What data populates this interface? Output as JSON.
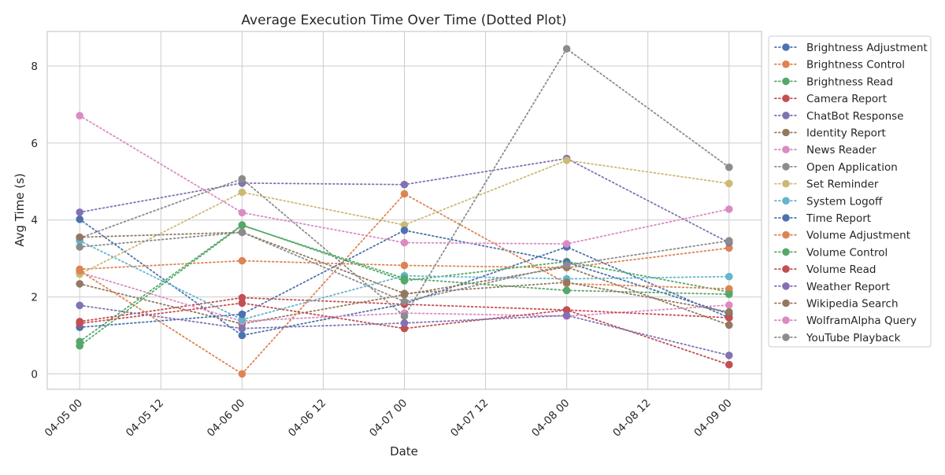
{
  "chart_data": {
    "type": "line",
    "title": "Average Execution Time Over Time (Dotted Plot)",
    "xlabel": "Date",
    "ylabel": "Avg Time (s)",
    "x": [
      "2024-04-05",
      "2024-04-06",
      "2024-04-07",
      "2024-04-08",
      "2024-04-09"
    ],
    "x_ticks": [
      "04-05 00",
      "04-05 12",
      "04-06 00",
      "04-06 12",
      "04-07 00",
      "04-07 12",
      "04-08 00",
      "04-08 12",
      "04-09 00"
    ],
    "ylim": [
      -0.4,
      8.9
    ],
    "y_ticks": [
      0,
      2,
      4,
      6,
      8
    ],
    "grid": true,
    "line_style": "dotted",
    "marker": "circle",
    "legend_position": "outside-right",
    "series": [
      {
        "name": "Brightness Adjustment",
        "color": "#4c72b0",
        "values": [
          4.02,
          1.0,
          1.82,
          3.3,
          1.46
        ]
      },
      {
        "name": "Brightness Control",
        "color": "#dd8452",
        "values": [
          2.72,
          2.94,
          2.82,
          2.76,
          3.27
        ]
      },
      {
        "name": "Brightness Read",
        "color": "#55a868",
        "values": [
          0.84,
          3.87,
          2.42,
          2.92,
          2.13
        ]
      },
      {
        "name": "Camera Report",
        "color": "#c44e52",
        "values": [
          1.36,
          1.98,
          1.81,
          1.66,
          0.24
        ]
      },
      {
        "name": "ChatBot Response",
        "color": "#8172b3",
        "values": [
          4.2,
          4.96,
          4.92,
          5.6,
          3.41
        ]
      },
      {
        "name": "Identity Report",
        "color": "#937860",
        "values": [
          2.34,
          1.3,
          2.06,
          2.78,
          1.27
        ]
      },
      {
        "name": "News Reader",
        "color": "#da8bc3",
        "values": [
          2.64,
          1.37,
          1.58,
          1.5,
          1.79
        ]
      },
      {
        "name": "Open Application",
        "color": "#8c8c8c",
        "values": [
          3.53,
          5.07,
          1.5,
          8.45,
          5.37
        ]
      },
      {
        "name": "Set Reminder",
        "color": "#ccb974",
        "values": [
          2.59,
          4.72,
          3.87,
          5.55,
          4.95
        ]
      },
      {
        "name": "System Logoff",
        "color": "#64b5cd",
        "values": [
          3.46,
          1.41,
          2.55,
          2.47,
          2.53
        ]
      },
      {
        "name": "Time Report",
        "color": "#4c72b0",
        "values": [
          1.21,
          1.55,
          3.73,
          2.9,
          1.56
        ]
      },
      {
        "name": "Volume Adjustment",
        "color": "#dd8452",
        "values": [
          2.68,
          0.0,
          4.68,
          2.35,
          2.21
        ]
      },
      {
        "name": "Volume Control",
        "color": "#55a868",
        "values": [
          0.73,
          3.86,
          2.48,
          2.17,
          2.07
        ]
      },
      {
        "name": "Volume Read",
        "color": "#c44e52",
        "values": [
          1.31,
          1.84,
          1.18,
          1.66,
          1.46
        ]
      },
      {
        "name": "Weather Report",
        "color": "#8172b3",
        "values": [
          1.78,
          1.18,
          1.32,
          1.52,
          0.48
        ]
      },
      {
        "name": "Wikipedia Search",
        "color": "#937860",
        "values": [
          3.55,
          3.68,
          2.09,
          2.38,
          1.61
        ]
      },
      {
        "name": "WolframAlpha Query",
        "color": "#da8bc3",
        "values": [
          6.71,
          4.19,
          3.41,
          3.38,
          4.28
        ]
      },
      {
        "name": "YouTube Playback",
        "color": "#8c8c8c",
        "values": [
          3.3,
          3.68,
          1.88,
          2.83,
          3.46
        ]
      }
    ]
  }
}
